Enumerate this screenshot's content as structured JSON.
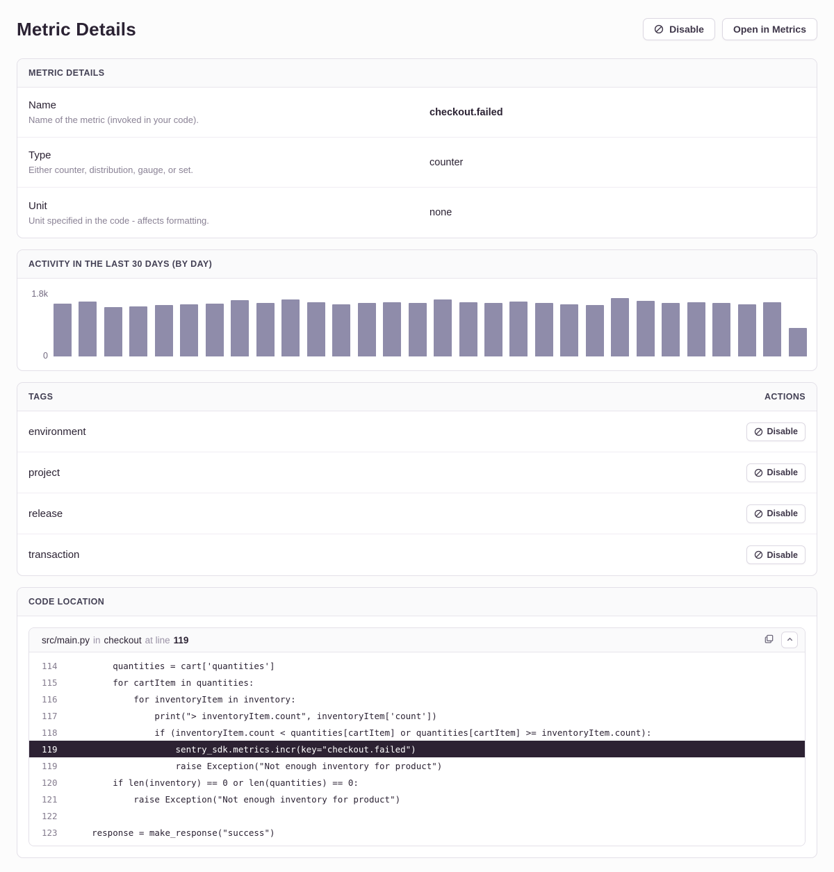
{
  "page": {
    "title": "Metric Details"
  },
  "header": {
    "disable_label": "Disable",
    "open_label": "Open in Metrics"
  },
  "metric_details": {
    "section_title": "METRIC DETAILS",
    "rows": [
      {
        "label": "Name",
        "description": "Name of the metric (invoked in your code).",
        "value": "checkout.failed",
        "bold": true
      },
      {
        "label": "Type",
        "description": "Either counter, distribution, gauge, or set.",
        "value": "counter",
        "bold": false
      },
      {
        "label": "Unit",
        "description": "Unit specified in the code - affects formatting.",
        "value": "none",
        "bold": false
      }
    ]
  },
  "activity": {
    "section_title": "ACTIVITY IN THE LAST 30 DAYS (BY DAY)",
    "y_max_label": "1.8k",
    "y_min_label": "0"
  },
  "chart_data": {
    "type": "bar",
    "title": "Activity in the last 30 days (by day)",
    "values": [
      1520,
      1580,
      1430,
      1450,
      1480,
      1500,
      1520,
      1615,
      1550,
      1650,
      1570,
      1500,
      1550,
      1560,
      1540,
      1640,
      1560,
      1540,
      1590,
      1550,
      1510,
      1480,
      1680,
      1600,
      1550,
      1570,
      1540,
      1510,
      1560,
      820
    ],
    "xlabel": "",
    "ylabel": "",
    "ylim": [
      0,
      1800
    ],
    "y_ticks": [
      "0",
      "1.8k"
    ],
    "grid": false,
    "legend": false,
    "bar_color": "#8f8caa"
  },
  "tags": {
    "section_title": "TAGS",
    "actions_title": "ACTIONS",
    "disable_label": "Disable",
    "items": [
      "environment",
      "project",
      "release",
      "transaction"
    ]
  },
  "code_location": {
    "section_title": "CODE LOCATION",
    "file": "src/main.py",
    "in_word": "in",
    "function": "checkout",
    "at_line_words": "at line",
    "line_number": "119",
    "lines": [
      {
        "num": "114",
        "text": "        quantities = cart['quantities']",
        "highlighted": false
      },
      {
        "num": "115",
        "text": "        for cartItem in quantities:",
        "highlighted": false
      },
      {
        "num": "116",
        "text": "            for inventoryItem in inventory:",
        "highlighted": false
      },
      {
        "num": "117",
        "text": "                print(\"> inventoryItem.count\", inventoryItem['count'])",
        "highlighted": false
      },
      {
        "num": "118",
        "text": "                if (inventoryItem.count < quantities[cartItem] or quantities[cartItem] >= inventoryItem.count):",
        "highlighted": false
      },
      {
        "num": "119",
        "text": "                    sentry_sdk.metrics.incr(key=\"checkout.failed\")",
        "highlighted": true
      },
      {
        "num": "119",
        "text": "                    raise Exception(\"Not enough inventory for product\")",
        "highlighted": false
      },
      {
        "num": "120",
        "text": "        if len(inventory) == 0 or len(quantities) == 0:",
        "highlighted": false
      },
      {
        "num": "121",
        "text": "            raise Exception(\"Not enough inventory for product\")",
        "highlighted": false
      },
      {
        "num": "122",
        "text": "",
        "highlighted": false
      },
      {
        "num": "123",
        "text": "    response = make_response(\"success\")",
        "highlighted": false
      }
    ]
  },
  "colors": {
    "accent_text": "#2b2233",
    "muted_text": "#8a8295",
    "border": "#e3e0e8",
    "bar": "#8f8caa",
    "code_highlight_bg": "#2d2233"
  }
}
